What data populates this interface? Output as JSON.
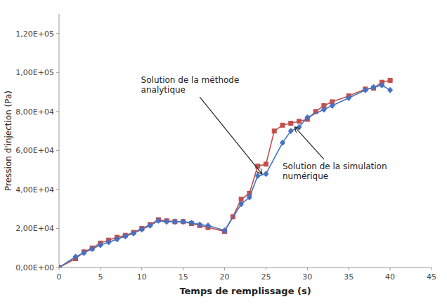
{
  "chart_data": {
    "type": "line",
    "xlabel": "Temps de remplissage (s)",
    "ylabel": "Pression d'injection (Pa)",
    "xlim": [
      0,
      45
    ],
    "ylim": [
      0,
      130000
    ],
    "xticks": [
      0,
      5,
      10,
      15,
      20,
      25,
      30,
      35,
      40,
      45
    ],
    "yticks": [
      {
        "value": 0,
        "label": "0,00E+00"
      },
      {
        "value": 20000,
        "label": "2,00E+04"
      },
      {
        "value": 40000,
        "label": "4,00E+04"
      },
      {
        "value": 60000,
        "label": "6,00E+04"
      },
      {
        "value": 80000,
        "label": "8,00E+04"
      },
      {
        "value": 100000,
        "label": "1,00E+05"
      },
      {
        "value": 120000,
        "label": "1,20E+05"
      }
    ],
    "grid": false,
    "series": [
      {
        "color": "#4472C4",
        "marker": "diamond",
        "x": [
          0,
          2,
          3,
          4,
          5,
          6,
          7,
          8,
          9,
          10,
          11,
          12,
          13,
          14,
          15,
          16,
          17,
          18,
          20,
          22,
          23,
          24,
          25,
          27,
          28,
          29,
          30,
          32,
          33,
          35,
          37,
          38,
          39,
          40
        ],
        "values": [
          0,
          5500,
          7500,
          9500,
          11500,
          13000,
          14500,
          16000,
          17500,
          19500,
          21500,
          24000,
          23500,
          23500,
          23500,
          23000,
          22000,
          21500,
          19000,
          32500,
          36000,
          47000,
          48000,
          64000,
          70000,
          72000,
          77000,
          81000,
          83000,
          87000,
          91000,
          92500,
          93500,
          91000
        ]
      },
      {
        "color": "#C0504D",
        "marker": "square",
        "x": [
          0,
          2,
          3,
          4,
          5,
          6,
          7,
          8,
          9,
          10,
          11,
          12,
          13,
          14,
          15,
          16,
          17,
          18,
          20,
          21,
          22,
          23,
          24,
          25,
          26,
          27,
          28,
          29,
          30,
          31,
          32,
          33,
          35,
          37,
          38,
          39,
          40
        ],
        "values": [
          0,
          4500,
          8000,
          10000,
          12500,
          14000,
          15500,
          16500,
          18000,
          20000,
          22000,
          24500,
          24000,
          23500,
          23500,
          22500,
          21500,
          20500,
          18500,
          26000,
          35000,
          38000,
          52000,
          53000,
          70000,
          73000,
          74000,
          75000,
          76000,
          80000,
          83000,
          85000,
          88000,
          91500,
          92000,
          95000,
          96000
        ]
      }
    ],
    "annotations": [
      {
        "text": "Solution de la méthode\nanalytique",
        "x": 24.5,
        "y": 48000
      },
      {
        "text": "Solution de la simulation\nnumérique",
        "x": 28.5,
        "y": 72000
      }
    ]
  }
}
